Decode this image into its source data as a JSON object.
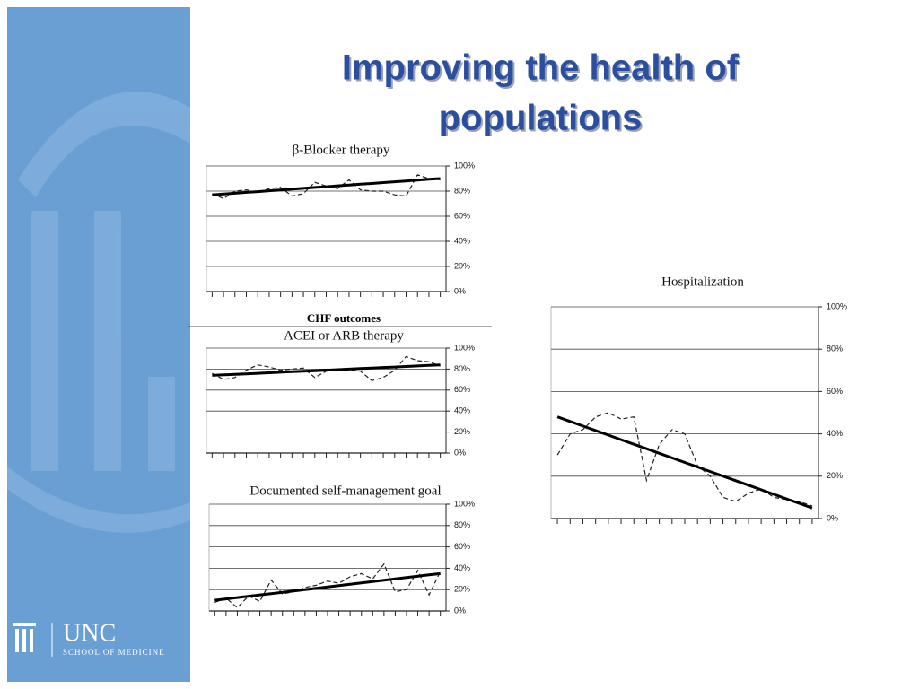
{
  "slide": {
    "title": "Improving the health of populations",
    "section": "CHF outcomes",
    "logo_name": "UNC",
    "logo_sub": "SCHOOL OF MEDICINE"
  },
  "chart_data": [
    {
      "type": "line",
      "title": "β-Blocker therapy",
      "categories": [
        null,
        null,
        null,
        null,
        null,
        null,
        null,
        null,
        null,
        null,
        null,
        null,
        null,
        null,
        null,
        null,
        null,
        null,
        null,
        null,
        null
      ],
      "series": [
        {
          "color": "#222222",
          "dash": true,
          "values": [
            78,
            74,
            80,
            81,
            79,
            82,
            83,
            76,
            78,
            87,
            84,
            82,
            89,
            81,
            80,
            80,
            77,
            76,
            93,
            90,
            89
          ]
        },
        {
          "color": "#000000",
          "values": [
            77,
            77.7,
            78.3,
            79,
            79.6,
            80.3,
            80.9,
            81.6,
            82.2,
            82.9,
            83.5,
            84.2,
            84.8,
            85.5,
            86.1,
            86.8,
            87.4,
            88.1,
            88.7,
            89.4,
            90
          ]
        }
      ],
      "ylim": [
        0,
        100
      ],
      "yticks": [
        {
          "value": 0,
          "label": "0%"
        },
        {
          "value": 20,
          "label": "20%"
        },
        {
          "value": 40,
          "label": "40%"
        },
        {
          "value": 60,
          "label": "60%"
        },
        {
          "value": 80,
          "label": "80%"
        },
        {
          "value": 100,
          "label": "100%"
        }
      ],
      "grid": true
    },
    {
      "type": "line",
      "title": "ACEI or ARB therapy",
      "categories": [
        null,
        null,
        null,
        null,
        null,
        null,
        null,
        null,
        null,
        null,
        null,
        null,
        null,
        null,
        null,
        null,
        null,
        null,
        null,
        null,
        null
      ],
      "series": [
        {
          "color": "#222222",
          "dash": true,
          "values": [
            76,
            70,
            72,
            79,
            84,
            82,
            79,
            80,
            81,
            72,
            78,
            80,
            79,
            78,
            69,
            72,
            79,
            92,
            88,
            87,
            83
          ]
        },
        {
          "color": "#000000",
          "values": [
            74,
            74.5,
            75,
            75.5,
            76,
            76.5,
            77,
            77.5,
            78,
            78.5,
            79,
            79.5,
            80,
            80.5,
            81,
            81.5,
            82,
            82.5,
            83,
            83.5,
            84
          ]
        }
      ],
      "ylim": [
        0,
        100
      ],
      "yticks": [
        {
          "value": 0,
          "label": "0%"
        },
        {
          "value": 20,
          "label": "20%"
        },
        {
          "value": 40,
          "label": "40%"
        },
        {
          "value": 60,
          "label": "60%"
        },
        {
          "value": 80,
          "label": "80%"
        },
        {
          "value": 100,
          "label": "100%"
        }
      ],
      "grid": true
    },
    {
      "type": "line",
      "title": "Documented self-management goal",
      "categories": [
        null,
        null,
        null,
        null,
        null,
        null,
        null,
        null,
        null,
        null,
        null,
        null,
        null,
        null,
        null,
        null,
        null,
        null,
        null,
        null,
        null
      ],
      "series": [
        {
          "color": "#222222",
          "dash": true,
          "values": [
            8,
            12,
            3,
            14,
            9,
            29,
            16,
            18,
            22,
            24,
            28,
            26,
            32,
            35,
            30,
            44,
            18,
            20,
            38,
            15,
            37
          ]
        },
        {
          "color": "#000000",
          "values": [
            10,
            11.25,
            12.5,
            13.75,
            15,
            16.25,
            17.5,
            18.75,
            20,
            21.25,
            22.5,
            23.75,
            25,
            26.25,
            27.5,
            28.75,
            30,
            31.25,
            32.5,
            33.75,
            35
          ]
        }
      ],
      "ylim": [
        0,
        100
      ],
      "yticks": [
        {
          "value": 0,
          "label": "0%"
        },
        {
          "value": 20,
          "label": "20%"
        },
        {
          "value": 40,
          "label": "40%"
        },
        {
          "value": 60,
          "label": "60%"
        },
        {
          "value": 80,
          "label": "80%"
        },
        {
          "value": 100,
          "label": "100%"
        }
      ],
      "grid": true
    },
    {
      "type": "line",
      "title": "Hospitalization",
      "categories": [
        null,
        null,
        null,
        null,
        null,
        null,
        null,
        null,
        null,
        null,
        null,
        null,
        null,
        null,
        null,
        null,
        null,
        null,
        null,
        null,
        null
      ],
      "series": [
        {
          "color": "#222222",
          "dash": true,
          "values": [
            30,
            40,
            42,
            48,
            50,
            47,
            48,
            18,
            35,
            42,
            40,
            25,
            20,
            10,
            8,
            12,
            14,
            10,
            9,
            8,
            6
          ]
        },
        {
          "color": "#000000",
          "values": [
            48,
            45.85,
            43.7,
            41.55,
            39.4,
            37.25,
            35.1,
            32.95,
            30.8,
            28.65,
            26.5,
            24.35,
            22.2,
            20.05,
            17.9,
            15.75,
            13.6,
            11.45,
            9.3,
            7.15,
            5
          ]
        }
      ],
      "ylim": [
        0,
        100
      ],
      "yticks": [
        {
          "value": 0,
          "label": "0%"
        },
        {
          "value": 20,
          "label": "20%"
        },
        {
          "value": 40,
          "label": "40%"
        },
        {
          "value": 60,
          "label": "60%"
        },
        {
          "value": 80,
          "label": "80%"
        },
        {
          "value": 100,
          "label": "100%"
        }
      ],
      "grid": true
    }
  ]
}
